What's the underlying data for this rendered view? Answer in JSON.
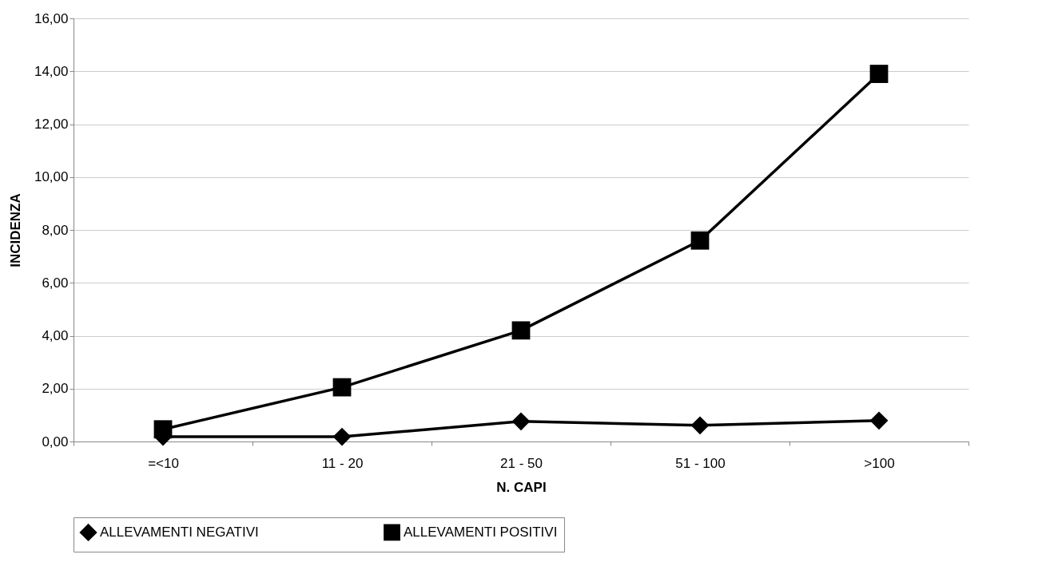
{
  "chart_data": {
    "type": "line",
    "xlabel": "N. CAPI",
    "ylabel": "INCIDENZA",
    "categories": [
      "=<10",
      "11 - 20",
      "21 - 50",
      "51 - 100",
      ">100"
    ],
    "series": [
      {
        "name": "ALLEVAMENTI NEGATIVI",
        "color": "#000000",
        "marker": "diamond",
        "values": [
          0.18,
          0.18,
          0.76,
          0.61,
          0.79
        ]
      },
      {
        "name": "ALLEVAMENTI POSITIVI",
        "color": "#000000",
        "marker": "square",
        "values": [
          0.46,
          2.05,
          4.2,
          7.6,
          13.9
        ]
      }
    ],
    "ylim": [
      0,
      16
    ],
    "yticks": [
      {
        "value": 0,
        "label": "0,00"
      },
      {
        "value": 2,
        "label": "2,00"
      },
      {
        "value": 4,
        "label": "4,00"
      },
      {
        "value": 6,
        "label": "6,00"
      },
      {
        "value": 8,
        "label": "8,00"
      },
      {
        "value": 10,
        "label": "10,00"
      },
      {
        "value": 12,
        "label": "12,00"
      },
      {
        "value": 14,
        "label": "14,00"
      },
      {
        "value": 16,
        "label": "16,00"
      }
    ],
    "grid": "y",
    "legend": "bottom",
    "line_style": "solid"
  }
}
